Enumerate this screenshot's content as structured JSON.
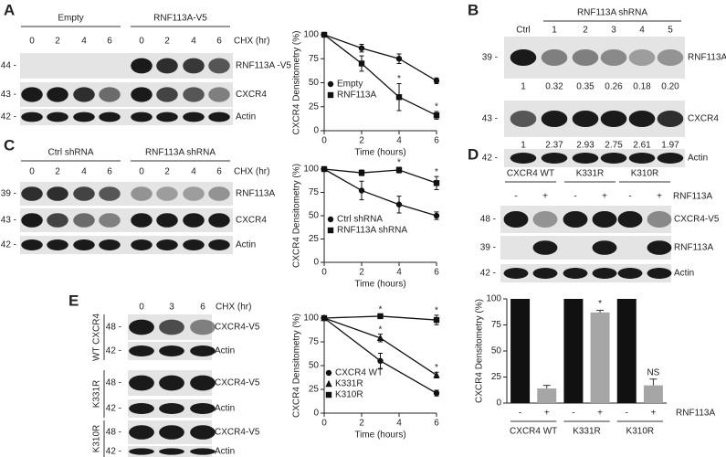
{
  "figure": {
    "A": {
      "letter": "A",
      "groups": [
        "Empty",
        "RNF113A-V5"
      ],
      "lanes": [
        "0",
        "2",
        "4",
        "6",
        "0",
        "2",
        "4",
        "6"
      ],
      "lane_unit": "CHX (hr)",
      "rows": [
        {
          "mw": "44 -",
          "protein": "RNF113A -V5"
        },
        {
          "mw": "43 -",
          "protein": "CXCR4"
        },
        {
          "mw": "42 -",
          "protein": "Actin"
        }
      ]
    },
    "B": {
      "letter": "B",
      "groups": [
        "RNF113A shRNA"
      ],
      "lanes": [
        "Ctrl",
        "1",
        "2",
        "3",
        "4",
        "5"
      ],
      "rows": [
        {
          "mw": "39 -",
          "protein": "RNF113A",
          "quant": [
            "1",
            "0.32",
            "0.35",
            "0.26",
            "0.18",
            "0.20"
          ]
        },
        {
          "mw": "43 -",
          "protein": "CXCR4",
          "quant": [
            "1",
            "2.37",
            "2.93",
            "2.75",
            "2.61",
            "1.97"
          ]
        },
        {
          "mw": "42 -",
          "protein": "Actin"
        }
      ]
    },
    "C": {
      "letter": "C",
      "groups": [
        "Ctrl shRNA",
        "RNF113A shRNA"
      ],
      "lanes": [
        "0",
        "2",
        "4",
        "6",
        "0",
        "2",
        "4",
        "6"
      ],
      "lane_unit": "CHX (hr)",
      "rows": [
        {
          "mw": "39 -",
          "protein": "RNF113A"
        },
        {
          "mw": "43 -",
          "protein": "CXCR4"
        },
        {
          "mw": "42 -",
          "protein": "Actin"
        }
      ]
    },
    "D": {
      "letter": "D",
      "groups": [
        "CXCR4 WT",
        "K331R",
        "K310R"
      ],
      "lanes": [
        "-",
        "+",
        "-",
        "+",
        "-",
        "+"
      ],
      "lane_unit": "RNF113A",
      "rows": [
        {
          "mw": "48 -",
          "protein": "CXCR4-V5"
        },
        {
          "mw": "39 -",
          "protein": "RNF113A"
        },
        {
          "mw": "42 -",
          "protein": "Actin"
        }
      ]
    },
    "E": {
      "letter": "E",
      "lanes": [
        "0",
        "3",
        "6"
      ],
      "lane_unit": "CHX (hr)",
      "sections": [
        {
          "label": "WT CXCR4",
          "rows": [
            {
              "mw": "48 -",
              "protein": "CXCR4-V5"
            },
            {
              "mw": "42 -",
              "protein": "Actin"
            }
          ]
        },
        {
          "label": "K331R",
          "rows": [
            {
              "mw": "48 -",
              "protein": "CXCR4-V5"
            },
            {
              "mw": "42 -",
              "protein": "Actin"
            }
          ]
        },
        {
          "label": "K310R",
          "rows": [
            {
              "mw": "48 -",
              "protein": "CXCR4-V5"
            },
            {
              "mw": "42 -",
              "protein": "Actin"
            }
          ]
        }
      ]
    }
  },
  "chart_data": [
    {
      "type": "line",
      "y_label": "CXCR4 Densitometry (%)",
      "x_label": "Time (hours)",
      "x": [
        0,
        2,
        4,
        6
      ],
      "xlim": [
        0,
        6
      ],
      "xticks": [
        0,
        2,
        4,
        6
      ],
      "ylim": [
        0,
        100
      ],
      "yticks": [
        0,
        25,
        50,
        75,
        100
      ],
      "series": [
        {
          "name": "Empty",
          "color": "#111111",
          "marker": "circle",
          "values": [
            100,
            86,
            75,
            52
          ],
          "errors": [
            0,
            4,
            5,
            3
          ]
        },
        {
          "name": "RNF113A",
          "color": "#111111",
          "marker": "square",
          "values": [
            100,
            70,
            35,
            16
          ],
          "errors": [
            0,
            8,
            14,
            4
          ],
          "significance": [
            null,
            "*",
            "*",
            "*"
          ]
        }
      ]
    },
    {
      "type": "line",
      "y_label": "CXCR4 Densitometry (%)",
      "x_label": "Time (hours)",
      "x": [
        0,
        2,
        4,
        6
      ],
      "xlim": [
        0,
        6
      ],
      "xticks": [
        0,
        2,
        4,
        6
      ],
      "ylim": [
        0,
        100
      ],
      "yticks": [
        0,
        25,
        50,
        75,
        100
      ],
      "series": [
        {
          "name": "Ctrl shRNA",
          "color": "#111111",
          "marker": "circle",
          "values": [
            100,
            77,
            62,
            50
          ],
          "errors": [
            0,
            10,
            9,
            4
          ]
        },
        {
          "name": "RNF113A shRNA",
          "color": "#111111",
          "marker": "square",
          "values": [
            100,
            96,
            99,
            85
          ],
          "errors": [
            0,
            3,
            3,
            7
          ],
          "significance": [
            null,
            null,
            "*",
            "*"
          ]
        }
      ]
    },
    {
      "type": "line",
      "y_label": "CXCR4 Densitometry (%)",
      "x_label": "Time (hours)",
      "x": [
        0,
        3,
        6
      ],
      "xlim": [
        0,
        6
      ],
      "xticks": [
        0,
        2,
        4,
        6
      ],
      "ylim": [
        0,
        100
      ],
      "yticks": [
        0,
        25,
        50,
        75,
        100
      ],
      "series": [
        {
          "name": "CXCR4 WT",
          "color": "#111111",
          "marker": "circle",
          "values": [
            100,
            55,
            21
          ],
          "errors": [
            0,
            8,
            3
          ]
        },
        {
          "name": "K331R",
          "color": "#111111",
          "marker": "triangle",
          "values": [
            100,
            79,
            40
          ],
          "errors": [
            0,
            4,
            3
          ],
          "significance": [
            null,
            "*",
            "*"
          ]
        },
        {
          "name": "K310R",
          "color": "#111111",
          "marker": "square",
          "values": [
            100,
            102,
            98
          ],
          "errors": [
            0,
            2,
            5
          ],
          "significance": [
            null,
            "*",
            "*"
          ]
        }
      ]
    },
    {
      "type": "bar",
      "y_label": "CXCR4 Densitometry (%)",
      "x_label": "RNF113A",
      "categories": [
        "-",
        "+",
        "-",
        "+",
        "-",
        "+"
      ],
      "groups": [
        "CXCR4 WT",
        "K331R",
        "K310R"
      ],
      "values": [
        100,
        14,
        100,
        87,
        100,
        17
      ],
      "errors": [
        0,
        3,
        0,
        2,
        0,
        6
      ],
      "colors": [
        "#111111",
        "#a6a6a6",
        "#111111",
        "#a6a6a6",
        "#111111",
        "#a6a6a6"
      ],
      "significance": [
        null,
        null,
        null,
        "*",
        null,
        "NS"
      ],
      "ylim": [
        0,
        100
      ],
      "yticks": [
        0,
        25,
        50,
        75,
        100
      ]
    }
  ]
}
